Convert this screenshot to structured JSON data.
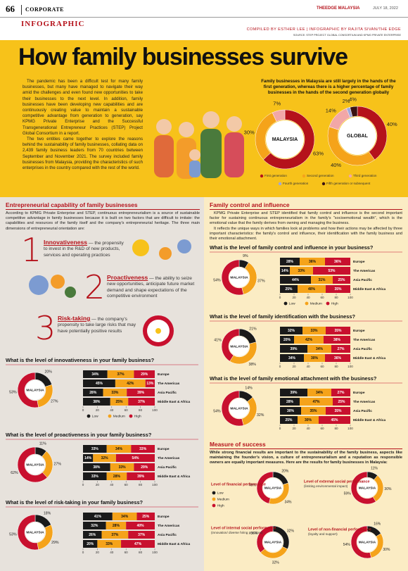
{
  "header": {
    "page": "66",
    "section": "CORPORATE",
    "publication": "THEEDGE MALAYSIA",
    "date": "JULY 18, 2022",
    "kicker": "INFOGRAPHIC",
    "credits": "COMPILED BY ESTHER LEE | INFOGRAPHIC BY RAJITA SIVAN/THE EDGE",
    "source": "SOURCE: STEP PROJECT GLOBAL CONSORTIUM AND KPMG PRIVATE ENTERPRISE"
  },
  "hero": {
    "title": "How family businesses survive",
    "intro": [
      "The pandemic has been a difficult test for many family businesses, but many have managed to navigate their way amid the challenges and even found new opportunities to take their businesses to the next level. In addition, family businesses have been developing new capabilities and are continuously creating value to maintain a sustainable competitive advantage from generation to generation, say KPMG Private Enterprise and the Successful Transgenerational Entrepreneur Practices (STEP) Project Global Consortium in a report.",
      "The two entities came together to explore the reasons behind the sustainability of family businesses, collating data on 2,439 family business leaders from 70 countries between September and November 2021. The survey included family businesses from Malaysia, providing the characteristics of such enterprises in the country compared with the rest of the world."
    ],
    "generations": {
      "title": "Family businesses in Malaysia are still largely in the hands of the first generation, whereas there is a higher percentage of family businesses in the hands of the second generation globally",
      "legend": [
        {
          "name": "First generation",
          "color": "#b5121b"
        },
        {
          "name": "Second generation",
          "color": "#f5a31a"
        },
        {
          "name": "Third generation",
          "color": "#f2a7a7"
        },
        {
          "name": "Fourth generation",
          "color": "#9fa8da"
        },
        {
          "name": "Fifth generation or subsequent",
          "color": "#3b1212"
        }
      ],
      "donuts": [
        {
          "center_label": "MALAYSIA",
          "values": [
            63,
            30,
            7
          ],
          "value_labels": [
            "63%",
            "30%",
            "7%"
          ]
        },
        {
          "center_label": "GLOBAL",
          "values": [
            40,
            40,
            14,
            2,
            4
          ],
          "value_labels": [
            "40%",
            "40%",
            "14%",
            "2%",
            "4%"
          ]
        }
      ]
    }
  },
  "left": {
    "title": "Entrepreneurial capability of family businesses",
    "intro": "According to KPMG Private Enterprise and STEP, continuous entrepreneurialism is a source of sustainable competitive advantage in family businesses because it is built on two factors that are difficult to imitate: the capabilities and resources of the family itself and the company's entrepreneurial heritage. The three main dimensions of entrepreneurial orientation are:",
    "dimensions": [
      {
        "number": "1",
        "name": "Innovativeness",
        "text": " — the propensity to invest in the R&D of new products, services and operating practices"
      },
      {
        "number": "2",
        "name": "Proactiveness",
        "text": " — the ability to seize new opportunities, anticipate future market demand and shape expectations of the competitive environment"
      },
      {
        "number": "3",
        "name": "Risk-taking",
        "text": " — the company's propensity to take large risks that may have potentially positive results"
      }
    ],
    "levels": [
      {
        "name": "Low",
        "color": "#1a1a1a"
      },
      {
        "name": "Medium",
        "color": "#f5a31a"
      },
      {
        "name": "High",
        "color": "#c8102e"
      }
    ],
    "charts": [
      {
        "title": "What is the level of innovativeness in your family business?",
        "donut": {
          "center_label": "MALAYSIA",
          "values": [
            20,
            27,
            53
          ],
          "value_labels": [
            "20%",
            "27%",
            "53%"
          ]
        },
        "xlim": [
          0,
          100
        ],
        "xticks": [
          0,
          20,
          40,
          60,
          80,
          100
        ],
        "rows": [
          {
            "category": "Europe",
            "values": [
              34,
              37,
              29
            ],
            "value_labels": [
              "34%",
              "37%",
              "29%"
            ]
          },
          {
            "category": "The Americas",
            "values": [
              45,
              42,
              13
            ],
            "value_labels": [
              "45%",
              "42%",
              "13%"
            ]
          },
          {
            "category": "Asia Pacific",
            "values": [
              28,
              33,
              39
            ],
            "value_labels": [
              "28%",
              "33%",
              "39%"
            ]
          },
          {
            "category": "Middle East & Africa",
            "values": [
              38,
              25,
              37
            ],
            "value_labels": [
              "38%",
              "25%",
              "37%"
            ]
          }
        ]
      },
      {
        "title": "What is the level of proactiveness in your family business?",
        "donut": {
          "center_label": "MALAYSIA",
          "values": [
            11,
            27,
            62
          ],
          "value_labels": [
            "11%",
            "27%",
            "62%"
          ]
        },
        "xlim": [
          0,
          100
        ],
        "xticks": [
          0,
          20,
          40,
          60,
          80,
          100
        ],
        "rows": [
          {
            "category": "Europe",
            "values": [
              33,
              34,
              33
            ],
            "value_labels": [
              "33%",
              "34%",
              "33%"
            ]
          },
          {
            "category": "The Americas",
            "values": [
              14,
              32,
              54
            ],
            "value_labels": [
              "14%",
              "32%",
              "54%"
            ]
          },
          {
            "category": "Asia Pacific",
            "values": [
              38,
              33,
              29
            ],
            "value_labels": [
              "38%",
              "33%",
              "29%"
            ]
          },
          {
            "category": "Middle East & Africa",
            "values": [
              33,
              28,
              39
            ],
            "value_labels": [
              "33%",
              "28%",
              "39%"
            ]
          }
        ]
      },
      {
        "title": "What is the level of risk-taking in your family business?",
        "donut": {
          "center_label": "MALAYSIA",
          "values": [
            18,
            29,
            53
          ],
          "value_labels": [
            "18%",
            "29%",
            "53%"
          ]
        },
        "xlim": [
          0,
          100
        ],
        "xticks": [
          0,
          20,
          40,
          60,
          80,
          100
        ],
        "rows": [
          {
            "category": "Europe",
            "values": [
              41,
              34,
              25
            ],
            "value_labels": [
              "41%",
              "34%",
              "25%"
            ]
          },
          {
            "category": "The Americas",
            "values": [
              32,
              28,
              40
            ],
            "value_labels": [
              "32%",
              "28%",
              "40%"
            ]
          },
          {
            "category": "Asia Pacific",
            "values": [
              26,
              37,
              37
            ],
            "value_labels": [
              "26%",
              "37%",
              "37%"
            ]
          },
          {
            "category": "Middle East & Africa",
            "values": [
              20,
              33,
              47
            ],
            "value_labels": [
              "20%",
              "33%",
              "47%"
            ]
          }
        ]
      }
    ]
  },
  "right": {
    "title": "Family control and influence",
    "intro": [
      "KPMG Private Enterprise and STEP identified that family control and influence is the second important factor for sustaining continuous entrepreneurialism in the family's \"socioemotional wealth\", which is the emotional value that the family derives from owning and managing the business.",
      "It reflects the unique ways in which families look at problems and how their actions may be affected by three important characteristics: the family's control and influence, their identification with the family business and their emotional attachment."
    ],
    "levels": [
      {
        "name": "Low",
        "color": "#1a1a1a"
      },
      {
        "name": "Medium",
        "color": "#f5a31a"
      },
      {
        "name": "High",
        "color": "#c8102e"
      }
    ],
    "charts": [
      {
        "title": "What is the level of family control and influence in your business?",
        "donut": {
          "center_label": "MALAYSIA",
          "values": [
            9,
            37,
            54
          ],
          "value_labels": [
            "9%",
            "37%",
            "54%"
          ]
        },
        "xlim": [
          0,
          100
        ],
        "xticks": [
          0,
          20,
          40,
          60,
          80,
          100
        ],
        "rows": [
          {
            "category": "Europe",
            "values": [
              28,
              36,
              36
            ],
            "value_labels": [
              "28%",
              "36%",
              "36%"
            ]
          },
          {
            "category": "The Americas",
            "values": [
              14,
              33,
              53
            ],
            "value_labels": [
              "14%",
              "33%",
              "53%"
            ]
          },
          {
            "category": "Asia Pacific",
            "values": [
              44,
              31,
              25
            ],
            "value_labels": [
              "44%",
              "31%",
              "25%"
            ]
          },
          {
            "category": "Middle East & Africa",
            "values": [
              25,
              40,
              35
            ],
            "value_labels": [
              "25%",
              "40%",
              "35%"
            ]
          }
        ]
      },
      {
        "title": "What is the level of family identification with the business?",
        "donut": {
          "center_label": "MALAYSIA",
          "values": [
            21,
            38,
            41
          ],
          "value_labels": [
            "21%",
            "38%",
            "41%"
          ]
        },
        "xlim": [
          0,
          100
        ],
        "xticks": [
          0,
          20,
          40,
          60,
          80,
          100
        ],
        "rows": [
          {
            "category": "Europe",
            "values": [
              32,
              33,
              35
            ],
            "value_labels": [
              "32%",
              "33%",
              "35%"
            ]
          },
          {
            "category": "The Americas",
            "values": [
              20,
              42,
              38
            ],
            "value_labels": [
              "20%",
              "42%",
              "38%"
            ]
          },
          {
            "category": "Asia Pacific",
            "values": [
              39,
              34,
              27
            ],
            "value_labels": [
              "39%",
              "34%",
              "27%"
            ]
          },
          {
            "category": "Middle East & Africa",
            "values": [
              34,
              30,
              36
            ],
            "value_labels": [
              "34%",
              "30%",
              "36%"
            ]
          }
        ]
      },
      {
        "title": "What is the level of family emotional attachment with the business?",
        "donut": {
          "center_label": "MALAYSIA",
          "values": [
            14,
            32,
            54
          ],
          "value_labels": [
            "14%",
            "32%",
            "54%"
          ]
        },
        "xlim": [
          0,
          100
        ],
        "xticks": [
          0,
          20,
          40,
          60,
          80,
          100
        ],
        "rows": [
          {
            "category": "Europe",
            "values": [
              39,
              34,
              27
            ],
            "value_labels": [
              "39%",
              "34%",
              "27%"
            ]
          },
          {
            "category": "The Americas",
            "values": [
              28,
              47,
              25
            ],
            "value_labels": [
              "28%",
              "47%",
              "25%"
            ]
          },
          {
            "category": "Asia Pacific",
            "values": [
              30,
              35,
              35
            ],
            "value_labels": [
              "30%",
              "35%",
              "35%"
            ]
          },
          {
            "category": "Middle East & Africa",
            "values": [
              25,
              30,
              45
            ],
            "value_labels": [
              "25%",
              "30%",
              "45%"
            ]
          }
        ]
      }
    ]
  },
  "success": {
    "title": "Measure of success",
    "text": "While strong financial results are important to the sustainability of the family business, aspects like maintaining the founder's vision, a culture of entrepreneurialism and a reputation as responsible owners are equally important measures. Here are the results for family businesses in Malaysia:",
    "levels": [
      {
        "name": "Low",
        "color": "#1a1a1a"
      },
      {
        "name": "Medium",
        "color": "#f5a31a"
      },
      {
        "name": "High",
        "color": "#c8102e"
      }
    ],
    "donuts": [
      {
        "label": "Level of financial performance",
        "center_label": "MALAYSIA",
        "values": [
          20,
          34,
          46
        ],
        "value_labels": [
          "20%",
          "34%",
          "46%"
        ]
      },
      {
        "label": "Level of external social performance",
        "note": "(limiting environmental impact)",
        "center_label": "MALAYSIA",
        "values": [
          11,
          30,
          59
        ],
        "value_labels": [
          "11%",
          "30%",
          "59%"
        ]
      },
      {
        "label": "Level of internal social performance",
        "note": "(innovation/ diverse hiring practices)",
        "center_label": "MALAYSIA",
        "values": [
          32,
          32,
          36
        ],
        "value_labels": [
          "32%",
          "32%",
          "36%"
        ]
      },
      {
        "label": "Level of non-financial performance",
        "note": "(loyalty and support)",
        "center_label": "MALAYSIA",
        "values": [
          16,
          30,
          54
        ],
        "value_labels": [
          "16%",
          "30%",
          "54%"
        ]
      }
    ]
  }
}
